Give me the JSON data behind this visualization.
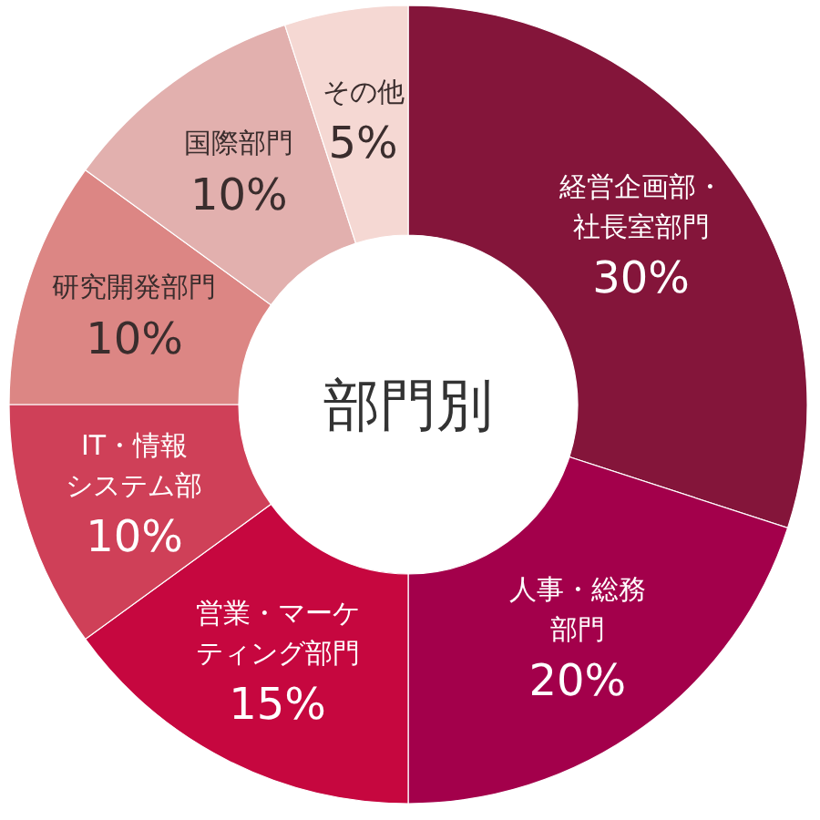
{
  "chart_data": {
    "type": "donut",
    "title": "部門別",
    "categories": [
      "経営企画部・社長室部門",
      "人事・総務部門",
      "営業・マーケティング部門",
      "IT・情報システム部",
      "研究開発部門",
      "国際部門",
      "その他"
    ],
    "values": [
      30,
      20,
      15,
      10,
      10,
      10,
      5
    ],
    "colors": [
      "#84153a",
      "#a3004b",
      "#c6073f",
      "#cf4058",
      "#dc8684",
      "#e2b0ae",
      "#f5d8d3"
    ],
    "value_labels": [
      "30%",
      "20%",
      "15%",
      "10%",
      "10%",
      "10%",
      "5%"
    ]
  }
}
